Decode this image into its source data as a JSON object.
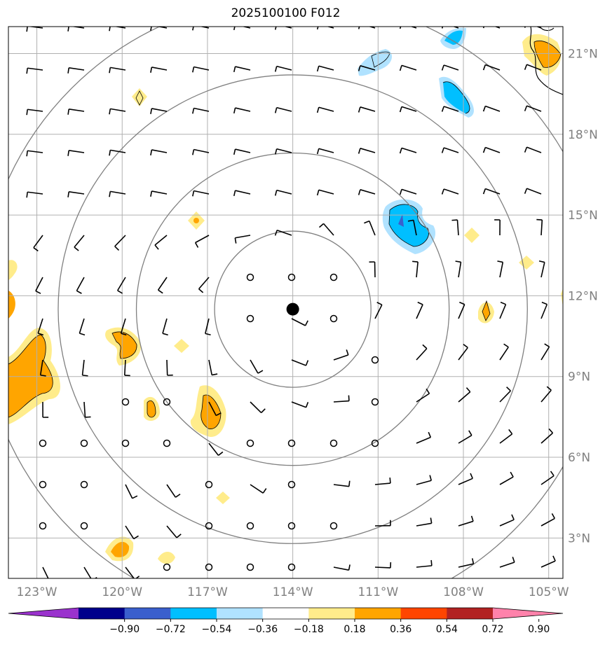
{
  "title": "2025100100 F012",
  "map": {
    "lon_range": [
      -124,
      -104.5
    ],
    "lat_range": [
      1.5,
      22
    ],
    "center": {
      "lon": -114,
      "lat": 11.5
    },
    "x_ticks": [
      {
        "value": -123,
        "label": "123°W"
      },
      {
        "value": -120,
        "label": "120°W"
      },
      {
        "value": -117,
        "label": "117°W"
      },
      {
        "value": -114,
        "label": "114°W"
      },
      {
        "value": -111,
        "label": "111°W"
      },
      {
        "value": -108,
        "label": "108°W"
      },
      {
        "value": -105,
        "label": "105°W"
      }
    ],
    "y_ticks": [
      {
        "value": 21,
        "label": "21°N"
      },
      {
        "value": 18,
        "label": "18°N"
      },
      {
        "value": 15,
        "label": "15°N"
      },
      {
        "value": 12,
        "label": "12°N"
      },
      {
        "value": 9,
        "label": "9°N"
      },
      {
        "value": 6,
        "label": "6°N"
      },
      {
        "value": 3,
        "label": "3°N"
      }
    ],
    "range_rings_deg": [
      2.75,
      5.5,
      8.25,
      11
    ],
    "gridlines": true
  },
  "colorbar": {
    "colors": [
      "#9a32cd",
      "#00008b",
      "#3a5fcd",
      "#00bfff",
      "#b0e2ff",
      "#ffffff",
      "#ffec8b",
      "#ffa500",
      "#ff4500",
      "#b22222",
      "#ff82ab"
    ],
    "ticks": [
      "−0.90",
      "−0.72",
      "−0.54",
      "−0.36",
      "−0.18",
      "0.18",
      "0.36",
      "0.54",
      "0.72",
      "0.90"
    ]
  },
  "colors": {
    "grid": "#b0b0b0",
    "ring": "#808080",
    "barb": "#000000"
  }
}
